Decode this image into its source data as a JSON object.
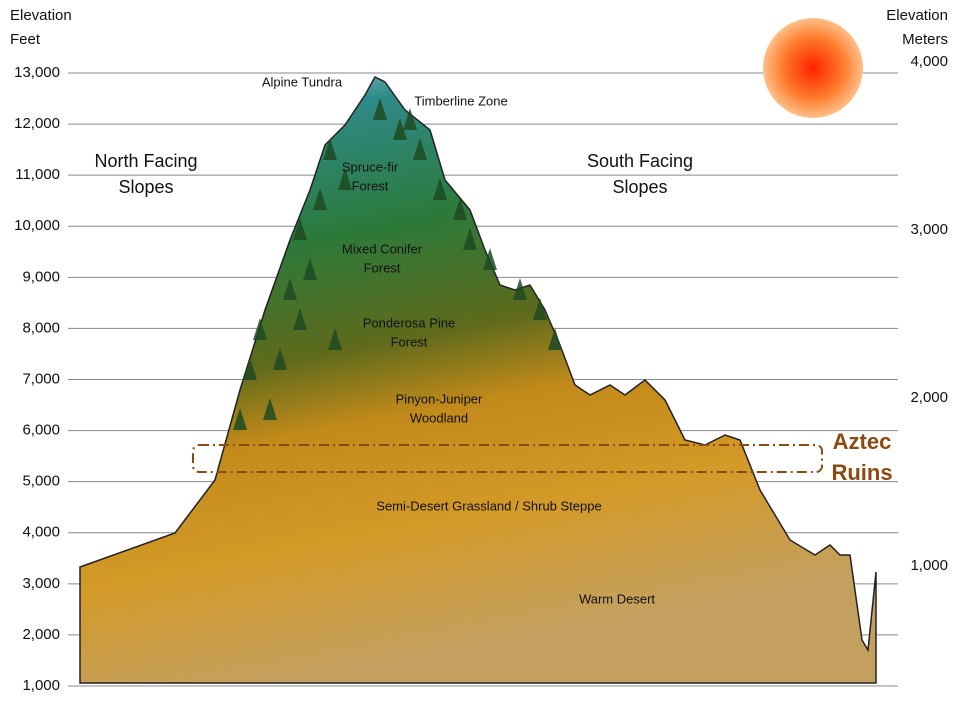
{
  "left_axis": {
    "title": [
      "Elevation",
      "Feet"
    ],
    "ticks": [
      "13,000",
      "12,000",
      "11,000",
      "10,000",
      "9,000",
      "8,000",
      "7,000",
      "6,000",
      "5,000",
      "4,000",
      "3,000",
      "2,000",
      "1,000"
    ]
  },
  "right_axis": {
    "title": [
      "Elevation",
      "Meters"
    ],
    "ticks": [
      "4,000",
      "3,000",
      "2,000",
      "1,000"
    ]
  },
  "slopes": [
    {
      "lines": [
        "North Facing",
        "Slopes"
      ]
    },
    {
      "lines": [
        "South Facing",
        "Slopes"
      ]
    }
  ],
  "zones": [
    {
      "lines": [
        "Alpine Tundra"
      ]
    },
    {
      "lines": [
        "Timberline Zone"
      ]
    },
    {
      "lines": [
        "Spruce-fir",
        "Forest"
      ]
    },
    {
      "lines": [
        "Mixed Conifer",
        "Forest"
      ]
    },
    {
      "lines": [
        "Ponderosa Pine",
        "Forest"
      ]
    },
    {
      "lines": [
        "Pinyon-Juniper",
        "Woodland"
      ]
    },
    {
      "lines": [
        "Semi-Desert Grassland / Shrub Steppe"
      ]
    },
    {
      "lines": [
        "Warm Desert"
      ]
    }
  ],
  "site": {
    "lines": [
      "Aztec",
      "Ruins"
    ]
  }
}
